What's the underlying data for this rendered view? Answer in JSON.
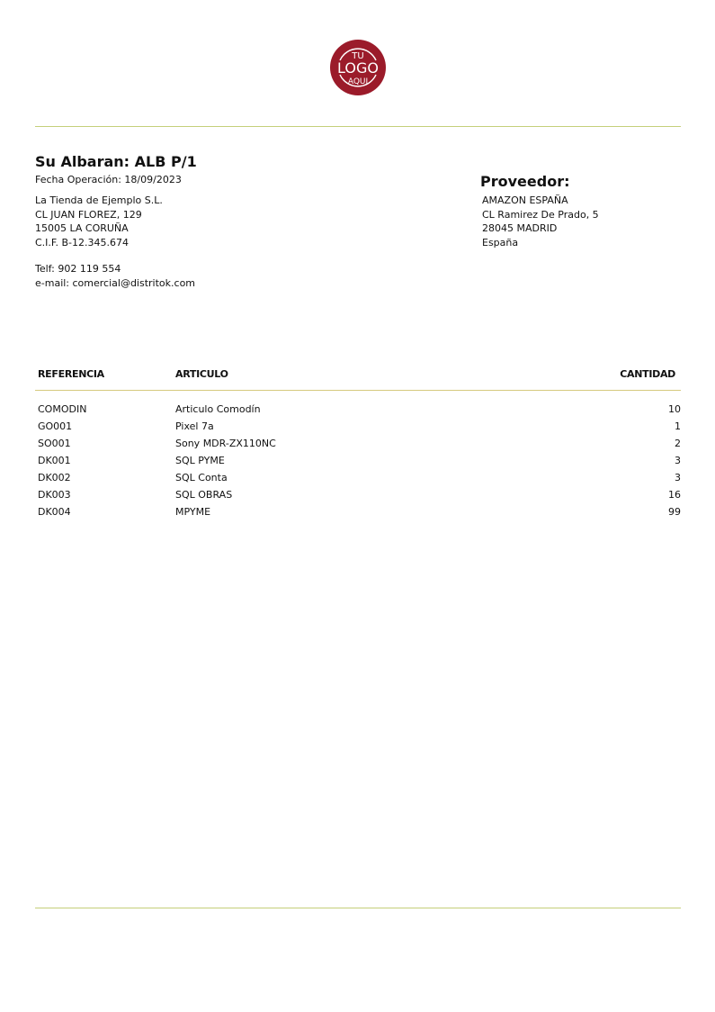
{
  "logo": {
    "line1": "TU",
    "line2": "LOGO",
    "line3": "AQUI",
    "color": "#9b1b2a"
  },
  "colors": {
    "divider": "#c5cf7a",
    "table_divider": "#d6c97e"
  },
  "document": {
    "title": "Su Albaran: ALB P/1",
    "date": "Fecha Operación: 18/09/2023",
    "company": [
      "La Tienda de Ejemplo S.L.",
      "CL JUAN FLOREZ, 129",
      "15005 LA CORUÑA",
      "C.I.F. B-12.345.674"
    ],
    "phone": "Telf: 902 119 554",
    "email": "e-mail: comercial@distritok.com"
  },
  "supplier": {
    "title": "Proveedor:",
    "lines": [
      "AMAZON ESPAÑA",
      "CL Ramirez De Prado, 5",
      "28045 MADRID",
      "España"
    ]
  },
  "table": {
    "headers": [
      "REFERENCIA",
      "ARTICULO",
      "CANTIDAD"
    ],
    "rows": [
      {
        "ref": "COMODIN",
        "article": "Articulo Comodín",
        "qty": "10"
      },
      {
        "ref": "GO001",
        "article": "Pixel 7a",
        "qty": "1"
      },
      {
        "ref": "SO001",
        "article": "Sony MDR-ZX110NC",
        "qty": "2"
      },
      {
        "ref": "DK001",
        "article": "SQL PYME",
        "qty": "3"
      },
      {
        "ref": "DK002",
        "article": "SQL Conta",
        "qty": "3"
      },
      {
        "ref": "DK003",
        "article": "SQL OBRAS",
        "qty": "16"
      },
      {
        "ref": "DK004",
        "article": "MPYME",
        "qty": "99"
      }
    ]
  }
}
